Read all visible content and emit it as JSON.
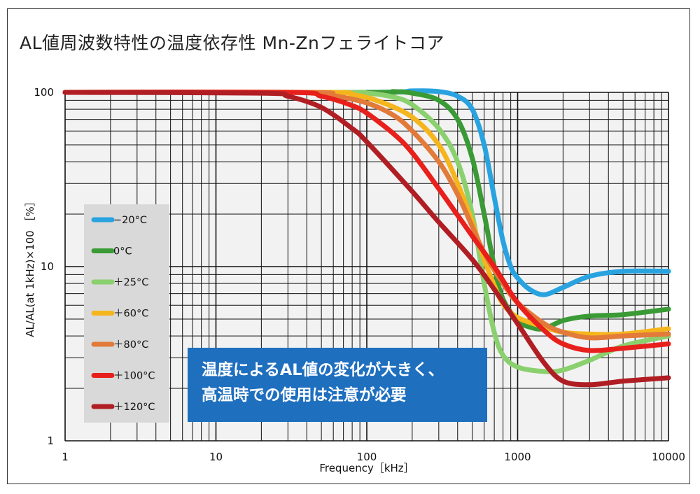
{
  "title": "AL値周波数特性の温度依存性 Mn-Znフェライトコア",
  "annotation": {
    "line1": "温度によるAL値の変化が大きく、",
    "line2": "高温時での使用は注意が必要"
  },
  "chart_data": {
    "type": "line",
    "title": "AL値周波数特性の温度依存性 Mn-Znフェライトコア",
    "xlabel": "Frequency［kHz］",
    "ylabel": "AL/AL(at 1kHz)×100 ［%］",
    "xscale": "log",
    "yscale": "log",
    "xlim": [
      1,
      10000
    ],
    "ylim": [
      1,
      100
    ],
    "x_ticks": [
      1,
      10,
      100,
      1000,
      10000
    ],
    "x_tick_labels": [
      "1",
      "10",
      "100",
      "1000",
      "10000"
    ],
    "y_ticks": [
      1,
      10,
      100
    ],
    "y_tick_labels": [
      "1",
      "10",
      "100"
    ],
    "grid": true,
    "legend_position": "left",
    "series": [
      {
        "name": "−20°C",
        "color": "#29a3e0",
        "points": [
          [
            1,
            100
          ],
          [
            100,
            100
          ],
          [
            200,
            102
          ],
          [
            300,
            101
          ],
          [
            400,
            95
          ],
          [
            500,
            80
          ],
          [
            600,
            50
          ],
          [
            700,
            25
          ],
          [
            800,
            14
          ],
          [
            900,
            10
          ],
          [
            1000,
            8.6
          ],
          [
            1200,
            7.4
          ],
          [
            1500,
            6.9
          ],
          [
            2000,
            7.6
          ],
          [
            3000,
            8.8
          ],
          [
            5000,
            9.4
          ],
          [
            10000,
            9.4
          ]
        ]
      },
      {
        "name": "0°C",
        "color": "#3a9a35",
        "points": [
          [
            1,
            100
          ],
          [
            100,
            100
          ],
          [
            150,
            101
          ],
          [
            200,
            99
          ],
          [
            300,
            90
          ],
          [
            400,
            70
          ],
          [
            500,
            42
          ],
          [
            600,
            20
          ],
          [
            700,
            10
          ],
          [
            800,
            6.5
          ],
          [
            1000,
            4.9
          ],
          [
            1200,
            4.5
          ],
          [
            1500,
            4.4
          ],
          [
            2000,
            4.9
          ],
          [
            3000,
            5.2
          ],
          [
            5000,
            5.3
          ],
          [
            10000,
            5.7
          ]
        ]
      },
      {
        "name": "＋25°C",
        "color": "#8bd06e",
        "points": [
          [
            1,
            100
          ],
          [
            60,
            100
          ],
          [
            100,
            99
          ],
          [
            150,
            94
          ],
          [
            200,
            85
          ],
          [
            300,
            62
          ],
          [
            400,
            40
          ],
          [
            500,
            20
          ],
          [
            600,
            8
          ],
          [
            700,
            4.2
          ],
          [
            800,
            3.1
          ],
          [
            1000,
            2.65
          ],
          [
            1500,
            2.5
          ],
          [
            2000,
            2.55
          ],
          [
            3000,
            2.9
          ],
          [
            5000,
            3.5
          ],
          [
            10000,
            4.0
          ]
        ]
      },
      {
        "name": "＋60°C",
        "color": "#f5b51c",
        "points": [
          [
            1,
            100
          ],
          [
            50,
            100
          ],
          [
            80,
            97
          ],
          [
            120,
            89
          ],
          [
            200,
            72
          ],
          [
            300,
            50
          ],
          [
            400,
            30
          ],
          [
            500,
            18
          ],
          [
            600,
            11
          ],
          [
            700,
            7.8
          ],
          [
            800,
            6.1
          ],
          [
            1000,
            5.1
          ],
          [
            1500,
            4.5
          ],
          [
            2000,
            4.2
          ],
          [
            3000,
            4.1
          ],
          [
            5000,
            4.1
          ],
          [
            10000,
            4.4
          ]
        ]
      },
      {
        "name": "＋80°C",
        "color": "#e27a3a",
        "points": [
          [
            1,
            100
          ],
          [
            40,
            100
          ],
          [
            60,
            96
          ],
          [
            100,
            87
          ],
          [
            150,
            74
          ],
          [
            200,
            60
          ],
          [
            300,
            40
          ],
          [
            400,
            26
          ],
          [
            500,
            17
          ],
          [
            600,
            12
          ],
          [
            800,
            8
          ],
          [
            1000,
            6.2
          ],
          [
            1500,
            4.7
          ],
          [
            2000,
            4.2
          ],
          [
            3000,
            3.9
          ],
          [
            5000,
            4.0
          ],
          [
            10000,
            4.1
          ]
        ]
      },
      {
        "name": "＋100°C",
        "color": "#e8201c",
        "points": [
          [
            1,
            100
          ],
          [
            30,
            100
          ],
          [
            50,
            95
          ],
          [
            80,
            84
          ],
          [
            100,
            76
          ],
          [
            150,
            58
          ],
          [
            200,
            45
          ],
          [
            300,
            28
          ],
          [
            500,
            15
          ],
          [
            700,
            10
          ],
          [
            1000,
            6.2
          ],
          [
            1500,
            4.3
          ],
          [
            2000,
            3.6
          ],
          [
            3000,
            3.3
          ],
          [
            5000,
            3.4
          ],
          [
            10000,
            3.6
          ]
        ]
      },
      {
        "name": "＋120°C",
        "color": "#b01e24",
        "points": [
          [
            1,
            100
          ],
          [
            20,
            99
          ],
          [
            30,
            95
          ],
          [
            50,
            82
          ],
          [
            80,
            62
          ],
          [
            100,
            52
          ],
          [
            200,
            27
          ],
          [
            300,
            18
          ],
          [
            500,
            11
          ],
          [
            700,
            7.4
          ],
          [
            1000,
            4.7
          ],
          [
            1500,
            2.8
          ],
          [
            2000,
            2.2
          ],
          [
            3000,
            2.1
          ],
          [
            5000,
            2.2
          ],
          [
            10000,
            2.3
          ]
        ]
      }
    ]
  }
}
